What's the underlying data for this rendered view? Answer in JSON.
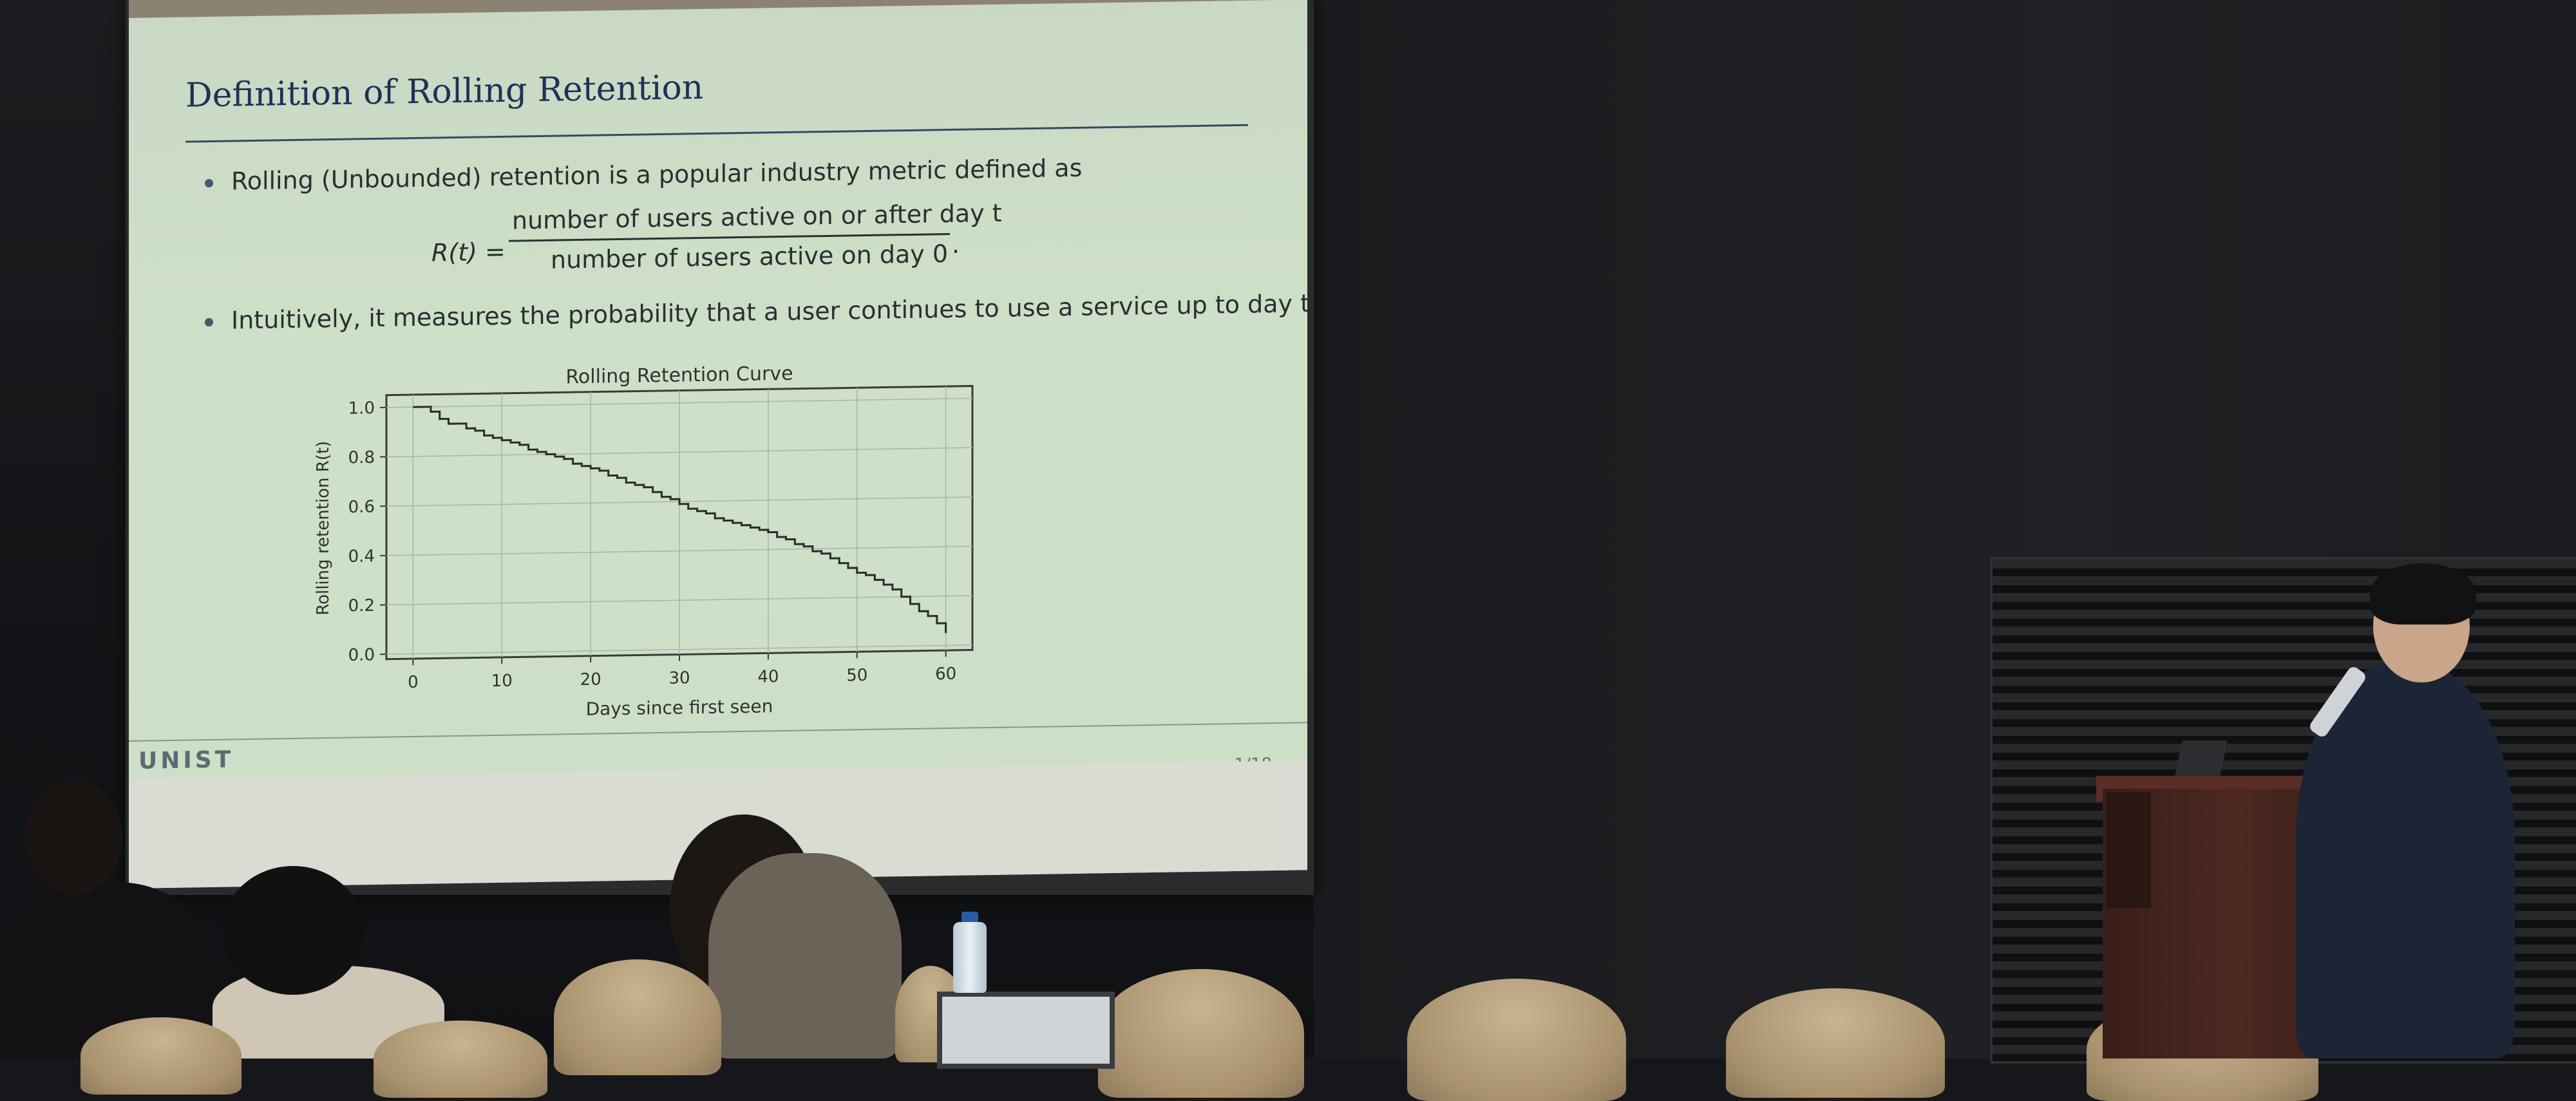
{
  "slide": {
    "title": "Definition of Rolling Retention",
    "bullet1": "Rolling (Unbounded) retention is a popular industry metric defined as",
    "formula_lhs": "R(t) =",
    "formula_numerator": "number of users active on or after day t",
    "formula_denominator": "number of users active on day 0",
    "formula_end": ".",
    "bullet2": "Intuitively, it measures the probability that a user continues to use a service up to day t.",
    "footer_logo": "UNIST",
    "page_number": "1/18"
  },
  "colors": {
    "title": "#232f57",
    "slide_bg": "#cddfc7",
    "curve": "#2b2b2b"
  },
  "chart_data": {
    "type": "line",
    "title": "Rolling Retention Curve",
    "xlabel": "Days since first seen",
    "ylabel": "Rolling retention R(t)",
    "xlim": [
      -3,
      63
    ],
    "ylim": [
      -0.02,
      1.05
    ],
    "xticks": [
      0,
      10,
      20,
      30,
      40,
      50,
      60
    ],
    "yticks": [
      0.0,
      0.2,
      0.4,
      0.6,
      0.8,
      1.0
    ],
    "xtick_labels": [
      "0",
      "10",
      "20",
      "30",
      "40",
      "50",
      "60"
    ],
    "ytick_labels": [
      "0.0",
      "0.2",
      "0.4",
      "0.6",
      "0.8",
      "1.0"
    ],
    "grid": true,
    "step": true,
    "series": [
      {
        "x": [
          0,
          1,
          2,
          3,
          4,
          5,
          6,
          7,
          8,
          9,
          10,
          11,
          12,
          13,
          14,
          15,
          16,
          17,
          18,
          19,
          20,
          21,
          22,
          23,
          24,
          25,
          26,
          27,
          28,
          29,
          30,
          31,
          32,
          33,
          34,
          35,
          36,
          37,
          38,
          39,
          40,
          41,
          42,
          43,
          44,
          45,
          46,
          47,
          48,
          49,
          50,
          51,
          52,
          53,
          54,
          55,
          56,
          57,
          58,
          59,
          60
        ],
        "y": [
          1.0,
          1.0,
          0.98,
          0.95,
          0.93,
          0.93,
          0.91,
          0.9,
          0.88,
          0.87,
          0.86,
          0.85,
          0.84,
          0.82,
          0.81,
          0.8,
          0.79,
          0.78,
          0.76,
          0.75,
          0.74,
          0.73,
          0.71,
          0.7,
          0.68,
          0.67,
          0.66,
          0.64,
          0.62,
          0.61,
          0.59,
          0.57,
          0.56,
          0.55,
          0.53,
          0.52,
          0.51,
          0.5,
          0.49,
          0.48,
          0.47,
          0.45,
          0.44,
          0.42,
          0.41,
          0.39,
          0.38,
          0.36,
          0.34,
          0.32,
          0.3,
          0.29,
          0.27,
          0.25,
          0.23,
          0.2,
          0.17,
          0.14,
          0.12,
          0.09,
          0.05
        ]
      }
    ]
  }
}
